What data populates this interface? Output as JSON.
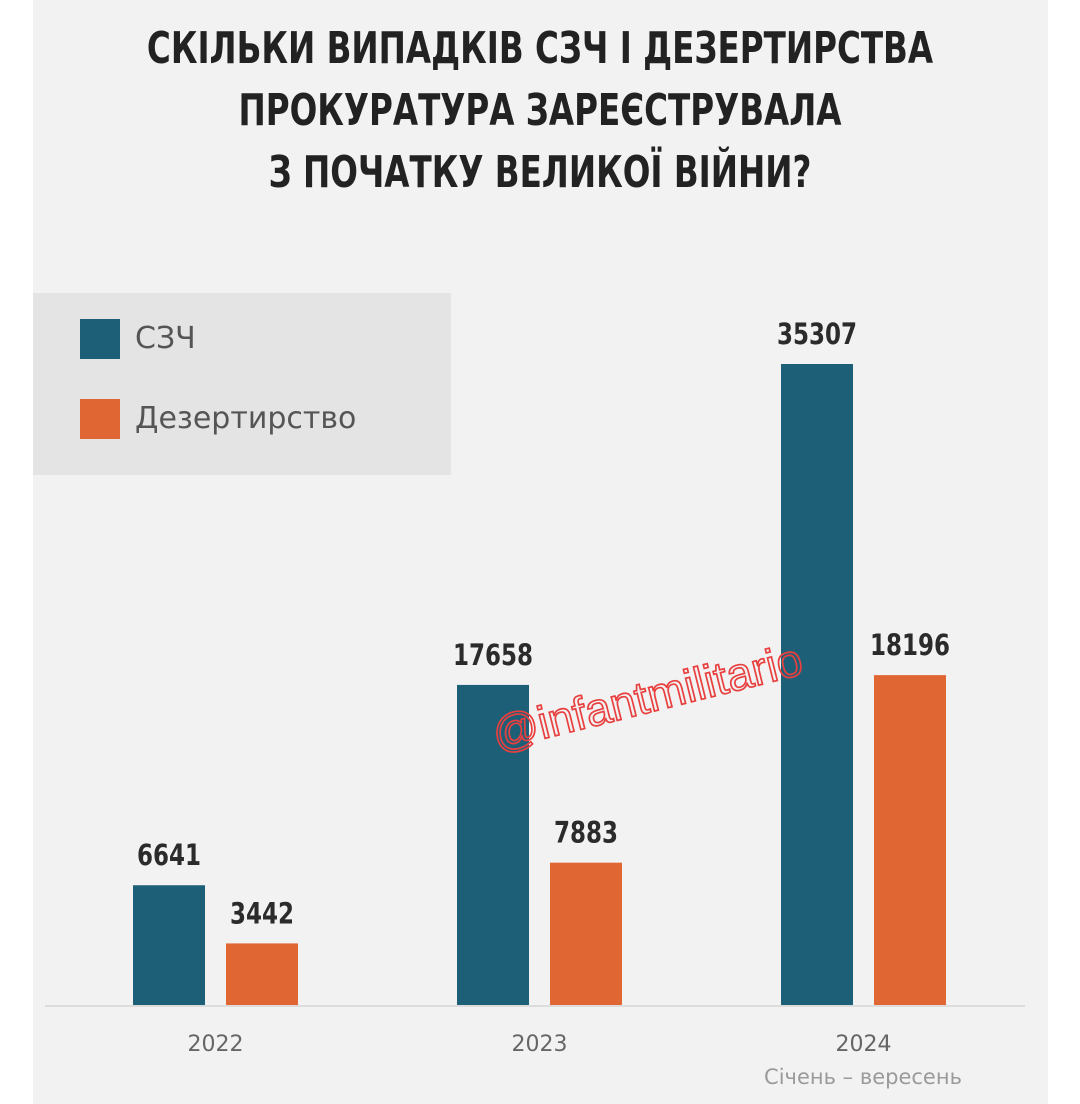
{
  "title_lines": [
    "СКІЛЬКИ ВИПАДКІВ СЗЧ І ДЕЗЕРТИРСТВА",
    "ПРОКУРАТУРА ЗАРЕЄСТРУВАЛА",
    "З ПОЧАТКУ ВЕЛИКОЇ ВІЙНИ?"
  ],
  "watermark": "@infantmilitario",
  "footnote": "Січень – вересень",
  "colors": {
    "szch": "#1e5f78",
    "desertion": "#e06633"
  },
  "chart_data": {
    "type": "bar",
    "title": "СКІЛЬКИ ВИПАДКІВ СЗЧ І ДЕЗЕРТИРСТВА ПРОКУРАТУРА ЗАРЕЄСТРУВАЛА З ПОЧАТКУ ВЕЛИКОЇ ВІЙНИ?",
    "categories": [
      "2022",
      "2023",
      "2024"
    ],
    "series": [
      {
        "name": "СЗЧ",
        "values": [
          6641,
          17658,
          35307
        ]
      },
      {
        "name": "Дезертирство",
        "values": [
          3442,
          7883,
          18196
        ]
      }
    ],
    "xlabel": "",
    "ylabel": "",
    "ylim": [
      0,
      35307
    ],
    "grid": false,
    "legend_position": "top-left",
    "data_labels": true
  }
}
